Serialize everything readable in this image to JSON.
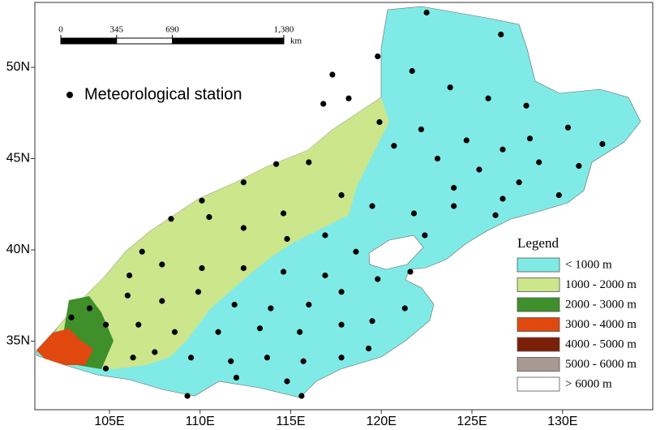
{
  "map": {
    "lat_ticks": [
      {
        "value": 50,
        "label": "50N"
      },
      {
        "value": 45,
        "label": "45N"
      },
      {
        "value": 40,
        "label": "40N"
      },
      {
        "value": 35,
        "label": "35N"
      }
    ],
    "lon_ticks": [
      {
        "value": 105,
        "label": "105E"
      },
      {
        "value": 110,
        "label": "110E"
      },
      {
        "value": 115,
        "label": "115E"
      },
      {
        "value": 120,
        "label": "120E"
      },
      {
        "value": 125,
        "label": "125E"
      },
      {
        "value": 130,
        "label": "130E"
      }
    ],
    "scale_bar": {
      "ticks": [
        0,
        345,
        690,
        {
          "value": 1380,
          "label": "1,380"
        }
      ],
      "unit": "km"
    },
    "station_label": "Meteorological station",
    "legend": {
      "title": "Legend",
      "entries": [
        {
          "label": "< 1000 m",
          "color": "#80ebe6"
        },
        {
          "label": "1000 - 2000 m",
          "color": "#cce68c"
        },
        {
          "label": "2000 - 3000 m",
          "color": "#3f8f2b"
        },
        {
          "label": "3000 - 4000 m",
          "color": "#e0480f"
        },
        {
          "label": "4000 - 5000 m",
          "color": "#7a2008"
        },
        {
          "label": "5000 - 6000 m",
          "color": "#a89a92"
        },
        {
          "label": "> 6000 m",
          "color": "#ffffff"
        }
      ]
    },
    "stations": {
      "lon": [
        122.5,
        126.6,
        119.8,
        117.3,
        121.7,
        123.8,
        125.9,
        128.0,
        130.3,
        132.2,
        116.8,
        118.2,
        119.9,
        122.2,
        124.7,
        126.7,
        128.7,
        130.9,
        120.7,
        123.1,
        125.4,
        127.6,
        129.8,
        114.2,
        116.0,
        112.4,
        110.1,
        108.4,
        110.5,
        112.4,
        114.6,
        117.8,
        119.5,
        121.8,
        124.0,
        126.3,
        114.8,
        116.9,
        118.6,
        122.4,
        106.8,
        107.9,
        110.1,
        112.4,
        114.6,
        116.9,
        106.0,
        107.9,
        109.9,
        111.9,
        113.9,
        116.0,
        117.8,
        119.8,
        121.6,
        104.8,
        106.6,
        108.6,
        111.0,
        113.3,
        115.5,
        117.8,
        119.5,
        121.3,
        104.8,
        106.3,
        107.5,
        109.5,
        111.7,
        113.7,
        115.7,
        117.8,
        119.3,
        109.3,
        112.0,
        114.8,
        115.6,
        102.9,
        103.9,
        106.1,
        126.7,
        124.0,
        128.2
      ],
      "lat": [
        53.0,
        51.8,
        50.6,
        49.6,
        49.8,
        48.9,
        48.3,
        47.9,
        46.7,
        45.8,
        48.0,
        48.3,
        47.0,
        46.6,
        46.0,
        45.5,
        44.8,
        44.6,
        45.7,
        45.0,
        44.4,
        43.7,
        43.0,
        44.7,
        44.8,
        43.7,
        42.7,
        41.7,
        41.8,
        41.2,
        42.0,
        43.0,
        42.4,
        42.0,
        42.4,
        41.9,
        40.6,
        40.8,
        39.9,
        40.8,
        39.9,
        39.2,
        39.0,
        39.0,
        38.8,
        38.6,
        37.5,
        37.2,
        37.7,
        37.0,
        36.8,
        37.0,
        37.7,
        38.4,
        38.8,
        35.9,
        35.9,
        35.5,
        35.5,
        35.7,
        35.5,
        35.9,
        36.1,
        36.8,
        33.5,
        34.1,
        34.4,
        34.1,
        33.9,
        34.1,
        33.9,
        34.1,
        34.6,
        32.0,
        33.0,
        32.8,
        32.0,
        36.3,
        36.8,
        38.6,
        42.8,
        43.4,
        46.1
      ]
    }
  }
}
